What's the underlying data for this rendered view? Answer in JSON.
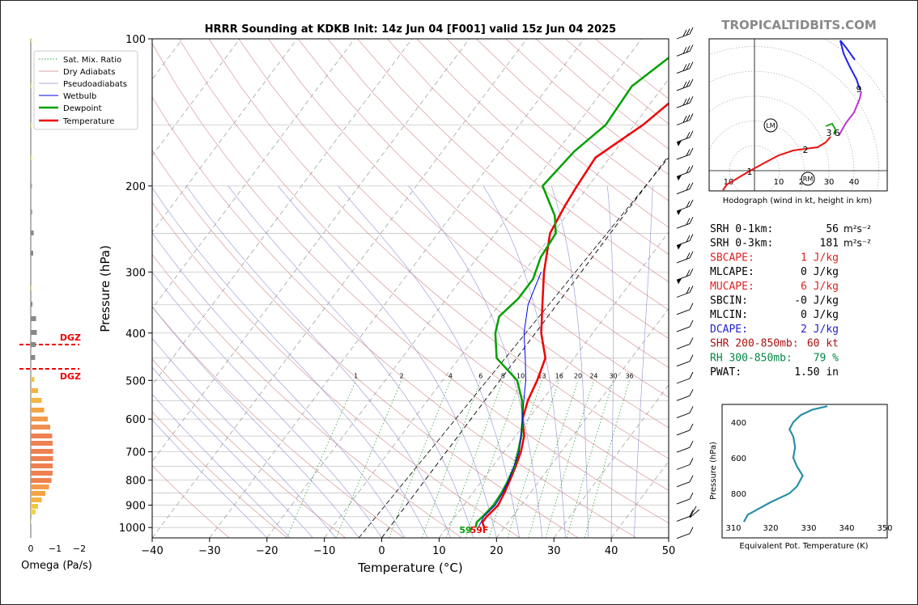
{
  "brand": "TROPICALTIDBITS.COM",
  "chart_data": [
    {
      "type": "line",
      "title": "HRRR Sounding at KDKB Init: 14z Jun 04 [F001] valid 15z Jun 04 2025",
      "xlabel": "Temperature (°C)",
      "ylabel": "Pressure (hPa)",
      "xlim": [
        -40,
        50
      ],
      "ylim": [
        1050,
        100
      ],
      "y_scale": "log",
      "x_ticks": [
        "−40",
        "−30",
        "−20",
        "−10",
        "0",
        "10",
        "20",
        "30",
        "40",
        "50"
      ],
      "y_ticks": [
        "100",
        "200",
        "300",
        "400",
        "500",
        "600",
        "700",
        "800",
        "900",
        "1000"
      ],
      "legend": {
        "placement": "top-left",
        "entries": [
          "Sat. Mix. Ratio",
          "Dry Adiabats",
          "Pseudoadiabats",
          "Wetbulb",
          "Dewpoint",
          "Temperature"
        ]
      },
      "mixing_ratio_labels": [
        "1",
        "2",
        "4",
        "6",
        "8",
        "10",
        "13",
        "16",
        "20",
        "24",
        "30",
        "36"
      ],
      "surface_labels": {
        "dewpoint": "59",
        "temperature": "59F"
      },
      "series": [
        {
          "name": "Temperature",
          "color": "#ee0000",
          "points": [
            [
              1000,
              16.5
            ],
            [
              975,
              15.5
            ],
            [
              950,
              15.5
            ],
            [
              925,
              15.8
            ],
            [
              900,
              16
            ],
            [
              850,
              15.5
            ],
            [
              800,
              14.8
            ],
            [
              750,
              14
            ],
            [
              700,
              13
            ],
            [
              650,
              11.5
            ],
            [
              600,
              9
            ],
            [
              550,
              7.5
            ],
            [
              500,
              6.5
            ],
            [
              450,
              5
            ],
            [
              400,
              1
            ],
            [
              350,
              -2.5
            ],
            [
              300,
              -6.5
            ],
            [
              250,
              -10.5
            ],
            [
              220,
              -11.5
            ],
            [
              200,
              -12
            ],
            [
              175,
              -12.5
            ],
            [
              150,
              -8.5
            ],
            [
              125,
              -5.5
            ],
            [
              100,
              -3
            ]
          ]
        },
        {
          "name": "Dewpoint",
          "color": "#00a000",
          "points": [
            [
              1000,
              15
            ],
            [
              975,
              14.5
            ],
            [
              950,
              14.8
            ],
            [
              925,
              15
            ],
            [
              900,
              15.2
            ],
            [
              850,
              15
            ],
            [
              800,
              14.5
            ],
            [
              750,
              13.8
            ],
            [
              700,
              12.5
            ],
            [
              650,
              11
            ],
            [
              600,
              9
            ],
            [
              550,
              6.5
            ],
            [
              500,
              3
            ],
            [
              450,
              -3.5
            ],
            [
              400,
              -7
            ],
            [
              370,
              -8.5
            ],
            [
              340,
              -7.5
            ],
            [
              310,
              -7.5
            ],
            [
              280,
              -9
            ],
            [
              250,
              -9.5
            ],
            [
              230,
              -12
            ],
            [
              200,
              -18
            ],
            [
              170,
              -17
            ],
            [
              150,
              -15
            ],
            [
              125,
              -15.5
            ],
            [
              100,
              -11
            ]
          ]
        },
        {
          "name": "Wetbulb",
          "color": "#0000ee",
          "points": [
            [
              1000,
              15.5
            ],
            [
              950,
              15
            ],
            [
              900,
              15.5
            ],
            [
              850,
              15.2
            ],
            [
              800,
              14.6
            ],
            [
              700,
              12.7
            ],
            [
              600,
              9
            ],
            [
              550,
              6.8
            ],
            [
              500,
              4.5
            ],
            [
              450,
              1.5
            ],
            [
              400,
              -2
            ],
            [
              350,
              -5
            ],
            [
              300,
              -7
            ]
          ]
        }
      ]
    },
    {
      "type": "line",
      "title": "Hodograph (wind in kt, height in km)",
      "x_ticks": [
        "10",
        "10",
        "20",
        "30",
        "40"
      ],
      "height_labels": [
        "1",
        "2",
        "3",
        "6",
        "9"
      ],
      "markers": [
        "LM",
        "RM"
      ]
    },
    {
      "type": "bar",
      "xlabel": "Omega (Pa/s)",
      "x_ticks": [
        "0",
        "−1",
        "−2"
      ],
      "labels": [
        "DGZ",
        "DGZ"
      ]
    },
    {
      "type": "line",
      "xlabel": "Equivalent Pot. Temperature (K)",
      "ylabel": "Pressure (hPa)",
      "x_ticks": [
        "310",
        "320",
        "330",
        "340",
        "350"
      ],
      "y_ticks": [
        "400",
        "600",
        "800"
      ]
    }
  ],
  "indices": [
    {
      "label": "SRH 0-1km:",
      "value": "56",
      "unit": "m²s⁻²",
      "color": "#000000"
    },
    {
      "label": "SRH 0-3km:",
      "value": "181",
      "unit": "m²s⁻²",
      "color": "#000000"
    },
    {
      "label": "SBCAPE:",
      "value": "1 J/kg",
      "unit": "",
      "color": "#dd2222"
    },
    {
      "label": "MLCAPE:",
      "value": "0 J/kg",
      "unit": "",
      "color": "#000000"
    },
    {
      "label": "MUCAPE:",
      "value": "6 J/kg",
      "unit": "",
      "color": "#dd2222"
    },
    {
      "label": "SBCIN:",
      "value": "-0 J/kg",
      "unit": "",
      "color": "#000000"
    },
    {
      "label": "MLCIN:",
      "value": "0 J/kg",
      "unit": "",
      "color": "#000000"
    },
    {
      "label": "DCAPE:",
      "value": "2 J/kg",
      "unit": "",
      "color": "#2222cc"
    },
    {
      "label": "SHR 200-850mb:",
      "value": "60 kt",
      "unit": "",
      "color": "#aa1111"
    },
    {
      "label": "RH 300-850mb:",
      "value": "79 %",
      "unit": "",
      "color": "#008844"
    },
    {
      "label": "PWAT:",
      "value": "1.50 in",
      "unit": "",
      "color": "#000000"
    }
  ]
}
